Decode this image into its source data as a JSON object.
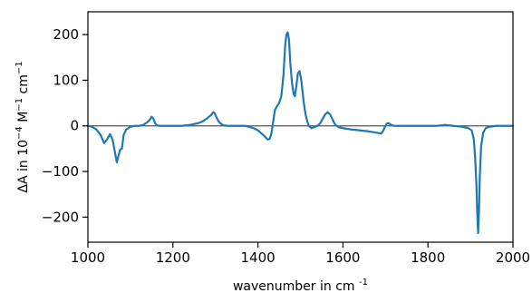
{
  "chart_data": {
    "type": "line",
    "title": "",
    "xlabel": {
      "main": "wavenumber in cm",
      "sup": "-1"
    },
    "ylabel": {
      "parts": [
        {
          "text": "ΔA in 10",
          "sup": false
        },
        {
          "text": "−4",
          "sup": true
        },
        {
          "text": " M",
          "sup": false
        },
        {
          "text": "−1",
          "sup": true
        },
        {
          "text": " cm",
          "sup": false
        },
        {
          "text": "−1",
          "sup": true
        }
      ]
    },
    "xlim": [
      1000,
      2000
    ],
    "ylim": [
      -255,
      250
    ],
    "xticks": [
      1000,
      1200,
      1400,
      1600,
      1800,
      2000
    ],
    "xtick_labels": [
      "1000",
      "1200",
      "1400",
      "1600",
      "1800",
      "2000"
    ],
    "yticks": [
      200,
      100,
      0,
      -100,
      -200
    ],
    "ytick_labels": [
      "200",
      "100",
      "0",
      "−100",
      "−200"
    ],
    "zero_line": true,
    "grid": false,
    "series_color": "#1f77b4",
    "zero_line_color": "#555555",
    "series": [
      {
        "name": "",
        "x": [
          1000,
          1010,
          1020,
          1030,
          1038,
          1045,
          1052,
          1058,
          1063,
          1068,
          1072,
          1076,
          1080,
          1084,
          1090,
          1100,
          1110,
          1120,
          1130,
          1140,
          1146,
          1150,
          1154,
          1158,
          1162,
          1170,
          1180,
          1200,
          1220,
          1240,
          1260,
          1270,
          1280,
          1285,
          1290,
          1295,
          1298,
          1302,
          1306,
          1312,
          1320,
          1330,
          1350,
          1370,
          1390,
          1400,
          1410,
          1418,
          1423,
          1428,
          1432,
          1436,
          1440,
          1446,
          1450,
          1455,
          1460,
          1464,
          1467,
          1470,
          1473,
          1476,
          1480,
          1484,
          1487,
          1490,
          1494,
          1498,
          1502,
          1505,
          1508,
          1512,
          1516,
          1520,
          1526,
          1532,
          1540,
          1546,
          1552,
          1558,
          1564,
          1570,
          1575,
          1580,
          1585,
          1590,
          1600,
          1620,
          1640,
          1660,
          1680,
          1690,
          1695,
          1700,
          1703,
          1707,
          1712,
          1720,
          1740,
          1760,
          1780,
          1800,
          1820,
          1840,
          1860,
          1880,
          1895,
          1903,
          1908,
          1911,
          1914,
          1916,
          1918,
          1920,
          1922,
          1925,
          1930,
          1936,
          1945,
          1960,
          1980,
          2000
        ],
        "y": [
          0,
          -2,
          -8,
          -20,
          -38,
          -30,
          -18,
          -30,
          -55,
          -80,
          -65,
          -52,
          -50,
          -20,
          -8,
          -2,
          0,
          0,
          2,
          8,
          14,
          20,
          16,
          6,
          1,
          0,
          0,
          0,
          0,
          2,
          6,
          10,
          16,
          20,
          24,
          30,
          28,
          20,
          12,
          5,
          1,
          0,
          0,
          0,
          -5,
          -10,
          -18,
          -25,
          -30,
          -28,
          -15,
          10,
          35,
          45,
          50,
          65,
          110,
          175,
          200,
          205,
          190,
          140,
          95,
          70,
          65,
          85,
          115,
          120,
          100,
          75,
          50,
          25,
          10,
          0,
          -5,
          -3,
          0,
          5,
          15,
          25,
          30,
          25,
          15,
          5,
          0,
          -3,
          -5,
          -8,
          -10,
          -12,
          -15,
          -17,
          -10,
          0,
          5,
          6,
          3,
          0,
          0,
          0,
          0,
          0,
          0,
          2,
          0,
          -2,
          -5,
          -10,
          -30,
          -70,
          -130,
          -190,
          -235,
          -190,
          -110,
          -45,
          -15,
          -5,
          -2,
          0,
          0,
          0
        ]
      }
    ]
  }
}
